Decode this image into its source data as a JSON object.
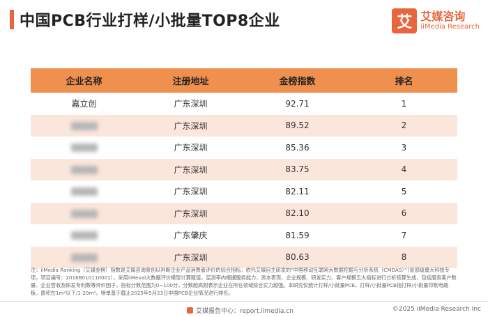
{
  "header": {
    "title": "中国PCB行业打样/小批量TOP8企业",
    "logo_mark": "艾",
    "logo_cn": "艾媒咨询",
    "logo_en": "iiMedia Research",
    "accent_color": "#e8663d"
  },
  "table": {
    "headers": [
      "企业名称",
      "注册地址",
      "金榜指数",
      "排名"
    ],
    "rows": [
      {
        "name": "嘉立创",
        "name_blurred": false,
        "address": "广东深圳",
        "score": "92.71",
        "rank": "1"
      },
      {
        "name": "",
        "name_blurred": true,
        "address": "广东深圳",
        "score": "89.52",
        "rank": "2"
      },
      {
        "name": "",
        "name_blurred": true,
        "address": "广东深圳",
        "score": "85.36",
        "rank": "3"
      },
      {
        "name": "",
        "name_blurred": true,
        "address": "广东深圳",
        "score": "83.75",
        "rank": "4"
      },
      {
        "name": "",
        "name_blurred": true,
        "address": "广东深圳",
        "score": "82.11",
        "rank": "5"
      },
      {
        "name": "",
        "name_blurred": true,
        "address": "广东深圳",
        "score": "82.10",
        "rank": "6"
      },
      {
        "name": "",
        "name_blurred": true,
        "address": "广东肇庆",
        "score": "81.59",
        "rank": "7"
      },
      {
        "name": "",
        "name_blurred": true,
        "address": "广东深圳",
        "score": "80.63",
        "rank": "8"
      }
    ],
    "header_color": "#f0904f",
    "stripe_color": "#fbe6dc"
  },
  "note": "注：iiMedia Ranking（艾媒金榜）指数是艾媒咨询原创以判断企业产品消费者评价的综合指标，依托艾媒自主研发的“中国移动互联网大数据挖掘与分析系统（CMDAS）”（省部级重大科技专项，项目编号：2016B010110001），采用iiMeval大数据评价模型计算赋值，监测率内根据服务能力、资本表现、企业规模、研发实力、客户规模五大指标进行分析核算生成，包括服务客户数量、企业营收及研发专利数等评价因子，指标分数范围为0~100分，分数越高则表示企业在所在领域综合实力越强。本研究仅统计打样/小批量PCB，打样/小批量PCB指打样/小批量印制电路板，面积在1m²以下/1-20m²。榜单基于截止2025年5月23日中国PCB企业情况进行排名。",
  "footer": {
    "left": "艾媒报告中心：report.iimedia.cn",
    "right": "©2025  iiMedia Research  Inc"
  }
}
